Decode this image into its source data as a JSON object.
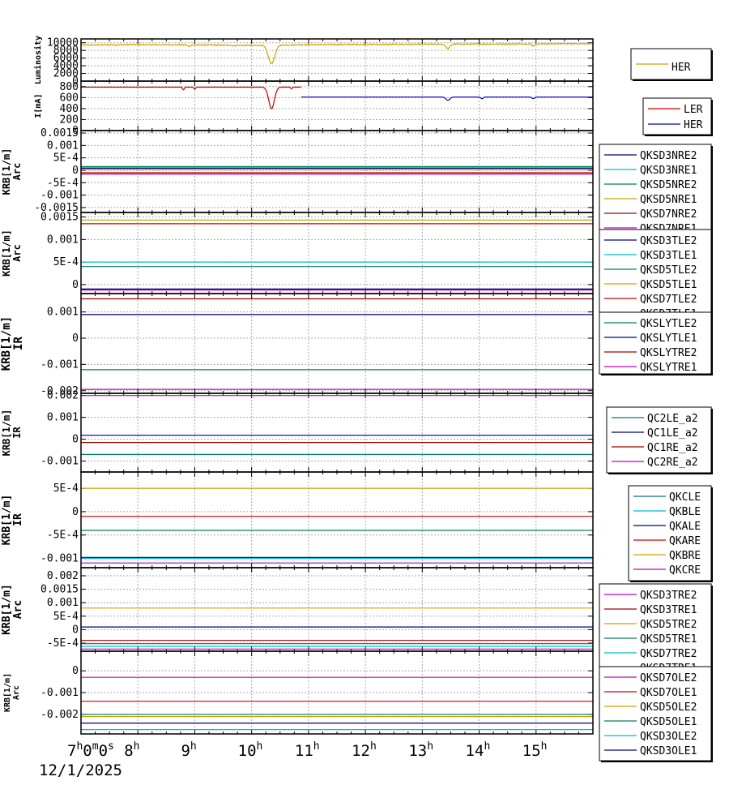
{
  "chart_data": {
    "type": "line",
    "x_axis": {
      "range_hours": [
        7,
        16
      ],
      "tick_labels": [
        {
          "label": "7",
          "sup": "h",
          "extra": "0",
          "extra_sup": "m",
          "extra2": "0",
          "extra2_sup": "s",
          "x": 7
        },
        {
          "label": "8",
          "sup": "h",
          "x": 8
        },
        {
          "label": "9",
          "sup": "h",
          "x": 9
        },
        {
          "label": "10",
          "sup": "h",
          "x": 10
        },
        {
          "label": "11",
          "sup": "h",
          "x": 11
        },
        {
          "label": "12",
          "sup": "h",
          "x": 12
        },
        {
          "label": "13",
          "sup": "h",
          "x": 13
        },
        {
          "label": "14",
          "sup": "h",
          "x": 14
        },
        {
          "label": "15",
          "sup": "h",
          "x": 15
        }
      ],
      "date_label": "12/1/2025"
    },
    "panels": [
      {
        "id": "lum",
        "ylabel": [
          "Luminosity"
        ],
        "ylim": [
          0,
          11000
        ],
        "yticks": [
          {
            "v": 10000,
            "t": "10000"
          },
          {
            "v": 8000,
            "t": "8000"
          },
          {
            "v": 6000,
            "t": "6000"
          },
          {
            "v": 4000,
            "t": "4000"
          },
          {
            "v": 2000,
            "t": "2000"
          },
          {
            "v": 0,
            "t": "0"
          }
        ],
        "legend_style": "large",
        "series": [
          {
            "name": "HER",
            "color": "#d4a000",
            "type": "lum",
            "base": 9400,
            "noise": 120,
            "trend": [
              [
                7,
                9400
              ],
              [
                8,
                9500
              ],
              [
                9,
                9450
              ],
              [
                10,
                9300
              ],
              [
                11,
                9500
              ],
              [
                13,
                9600
              ],
              [
                15,
                9700
              ],
              [
                16,
                9800
              ]
            ],
            "dips": [
              [
                10.35,
                4600,
                0.08
              ],
              [
                13.45,
                8500,
                0.05
              ],
              [
                8.9,
                9050,
                0.03
              ],
              [
                14.95,
                9200,
                0.03
              ],
              [
                9.7,
                9200,
                0.03
              ]
            ]
          }
        ]
      },
      {
        "id": "cur",
        "ylabel": [
          "I[mA]"
        ],
        "ylim": [
          0,
          900
        ],
        "yticks": [
          {
            "v": 800,
            "t": "800"
          },
          {
            "v": 600,
            "t": "600"
          },
          {
            "v": 400,
            "t": "400"
          },
          {
            "v": 200,
            "t": "200"
          },
          {
            "v": 0,
            "t": "0"
          }
        ],
        "series": [
          {
            "name": "LER",
            "color": "#d00000",
            "type": "cur",
            "segments": [
              [
                7,
                10.87,
                790
              ]
            ],
            "dips": [
              [
                10.35,
                400,
                0.07
              ],
              [
                8.8,
                740,
                0.02
              ],
              [
                9.0,
                750,
                0.02
              ],
              [
                10.7,
                760,
                0.02
              ]
            ]
          },
          {
            "name": "HER",
            "color": "#0000c0",
            "type": "cur",
            "segments": [
              [
                10.87,
                16,
                610
              ]
            ],
            "dips": [
              [
                13.45,
                550,
                0.05
              ],
              [
                14.05,
                580,
                0.03
              ],
              [
                14.95,
                580,
                0.03
              ]
            ]
          }
        ]
      },
      {
        "id": "arc1",
        "ylabel": [
          "KRB[1/m]",
          "Arc"
        ],
        "ylim": [
          -0.0017,
          0.0016
        ],
        "yticks": [
          {
            "v": 0.0015,
            "t": "0.0015"
          },
          {
            "v": 0.001,
            "t": "0.001"
          },
          {
            "v": 0.0005,
            "t": "5E-4"
          },
          {
            "v": 0,
            "t": "0"
          },
          {
            "v": -0.0005,
            "t": "-5E-4"
          },
          {
            "v": -0.001,
            "t": "-0.001"
          },
          {
            "v": -0.0015,
            "t": "-0.0015"
          }
        ],
        "series": [
          {
            "name": "QKSD3NRE2",
            "color": "#000080",
            "value": 8e-05
          },
          {
            "name": "QKSD3NRE1",
            "color": "#00bcd4",
            "value": 0.00012
          },
          {
            "name": "QKSD5NRE2",
            "color": "#008060",
            "value": 0.00015
          },
          {
            "name": "QKSD5NRE1",
            "color": "#d4a000",
            "value": 3e-05
          },
          {
            "name": "QKSD7NRE2",
            "color": "#a00000",
            "value": -0.0001
          },
          {
            "name": "QKSD7NRE1",
            "color": "#c000c0",
            "value": -0.00015
          }
        ]
      },
      {
        "id": "arc2",
        "ylabel": [
          "KRB[1/m]",
          "Arc"
        ],
        "ylim": [
          -0.0002,
          0.0016
        ],
        "yticks": [
          {
            "v": 0.0015,
            "t": "0.0015"
          },
          {
            "v": 0.001,
            "t": "0.001"
          },
          {
            "v": 0.0005,
            "t": "5E-4"
          },
          {
            "v": 0,
            "t": "0"
          }
        ],
        "series": [
          {
            "name": "QKSD3TLE2",
            "color": "#000080",
            "value": -0.0001
          },
          {
            "name": "QKSD3TLE1",
            "color": "#00bcd4",
            "value": 0.0005
          },
          {
            "name": "QKSD5TLE2",
            "color": "#008060",
            "value": 0.0004
          },
          {
            "name": "QKSD5TLE1",
            "color": "#d4a000",
            "value": 0.00143
          },
          {
            "name": "QKSD7TLE2",
            "color": "#d00000",
            "value": 0.00135
          },
          {
            "name": "QKSD7TLE1",
            "color": "#c000c0",
            "value": -0.00012
          }
        ]
      },
      {
        "id": "ir1",
        "ylabel": [
          "KRB[1/m]",
          "IR"
        ],
        "ylim": [
          -0.0021,
          0.0017
        ],
        "yticks": [
          {
            "v": 0.001,
            "t": "0.001"
          },
          {
            "v": 0,
            "t": "0"
          },
          {
            "v": -0.001,
            "t": "-0.001"
          },
          {
            "v": -0.002,
            "t": "-0.002"
          }
        ],
        "series": [
          {
            "name": "QKSLYTLE2",
            "color": "#008060",
            "value": -0.0012
          },
          {
            "name": "QKSLYTLE1",
            "color": "#000080",
            "value": 0.0009
          },
          {
            "name": "QKSLYTRE2",
            "color": "#a00000",
            "value": 0.0015
          },
          {
            "name": "QKSLYTRE1",
            "color": "#c000c0",
            "value": -0.00195
          }
        ]
      },
      {
        "id": "ir2",
        "ylabel": [
          "KRB[1/m]",
          "IR"
        ],
        "ylim": [
          -0.0015,
          0.0021
        ],
        "yticks": [
          {
            "v": 0.002,
            "t": "0.002"
          },
          {
            "v": 0.001,
            "t": "0.001"
          },
          {
            "v": 0,
            "t": "0"
          },
          {
            "v": -0.001,
            "t": "-0.001"
          }
        ],
        "series": [
          {
            "name": "QC2LE_a2",
            "color": "#008060",
            "value": -0.0007
          },
          {
            "name": "QC1LE_a2",
            "color": "#000080",
            "value": 0.00018
          },
          {
            "name": "QC1RE_a2",
            "color": "#a00000",
            "value": -0.00015
          },
          {
            "name": "QC2RE_a2",
            "color": "#c000c0",
            "value": 0.002
          }
        ]
      },
      {
        "id": "ir3",
        "ylabel": [
          "KRB[1/m]",
          "IR"
        ],
        "ylim": [
          -0.0012,
          0.00085
        ],
        "yticks": [
          {
            "v": 0.0005,
            "t": "5E-4"
          },
          {
            "v": 0,
            "t": "0"
          },
          {
            "v": -0.0005,
            "t": "-5E-4"
          },
          {
            "v": -0.001,
            "t": "-0.001"
          }
        ],
        "series": [
          {
            "name": "QKCLE",
            "color": "#008060",
            "value": -0.0004
          },
          {
            "name": "QKBLE",
            "color": "#00bcd4",
            "value": -0.001
          },
          {
            "name": "QKALE",
            "color": "#000080",
            "value": -0.00098
          },
          {
            "name": "QKARE",
            "color": "#d00000",
            "value": -0.0001
          },
          {
            "name": "QKBRE",
            "color": "#d4a000",
            "value": 0.0005
          },
          {
            "name": "QKCRE",
            "color": "#c000c0",
            "value": -0.0011
          }
        ]
      },
      {
        "id": "arc3",
        "ylabel": [
          "KRB[1/m]",
          "Arc"
        ],
        "ylim": [
          -0.0008,
          0.0023
        ],
        "yticks": [
          {
            "v": 0.002,
            "t": "0.002"
          },
          {
            "v": 0.0015,
            "t": "0.0015"
          },
          {
            "v": 0.001,
            "t": "0.001"
          },
          {
            "v": 0.0005,
            "t": "5E-4"
          },
          {
            "v": 0,
            "t": "0"
          },
          {
            "v": -0.0005,
            "t": "-5E-4"
          }
        ],
        "series": [
          {
            "name": "QKSD3TRE2",
            "color": "#c000c0",
            "value": -0.00072
          },
          {
            "name": "QKSD3TRE1",
            "color": "#a00000",
            "value": -0.0004
          },
          {
            "name": "QKSD5TRE2",
            "color": "#d4a000",
            "value": 0.0008
          },
          {
            "name": "QKSD5TRE1",
            "color": "#008060",
            "value": -0.00052
          },
          {
            "name": "QKSD7TRE2",
            "color": "#00bcd4",
            "value": -0.00062
          },
          {
            "name": "QKSD7TRE1",
            "color": "#000080",
            "value": 0.0001
          }
        ]
      },
      {
        "id": "arc4",
        "ylabel": [
          "KRB[1/m]",
          "Arc"
        ],
        "ylim": [
          -0.0029,
          0.0009
        ],
        "yticks": [
          {
            "v": 0,
            "t": "0"
          },
          {
            "v": -0.001,
            "t": "-0.001"
          },
          {
            "v": -0.002,
            "t": "-0.002"
          }
        ],
        "series": [
          {
            "name": "QKSD7OLE2",
            "color": "#c000c0",
            "value": -0.0003
          },
          {
            "name": "QKSD7OLE1",
            "color": "#d00000",
            "value": -0.0014
          },
          {
            "name": "QKSD5OLE2",
            "color": "#d4a000",
            "value": -0.0021
          },
          {
            "name": "QKSD5OLE1",
            "color": "#008060",
            "value": -0.002
          },
          {
            "name": "QKSD3OLE2",
            "color": "#00bcd4",
            "value": -0.0027
          },
          {
            "name": "QKSD3OLE1",
            "color": "#000080",
            "value": -0.0024
          }
        ]
      }
    ]
  }
}
